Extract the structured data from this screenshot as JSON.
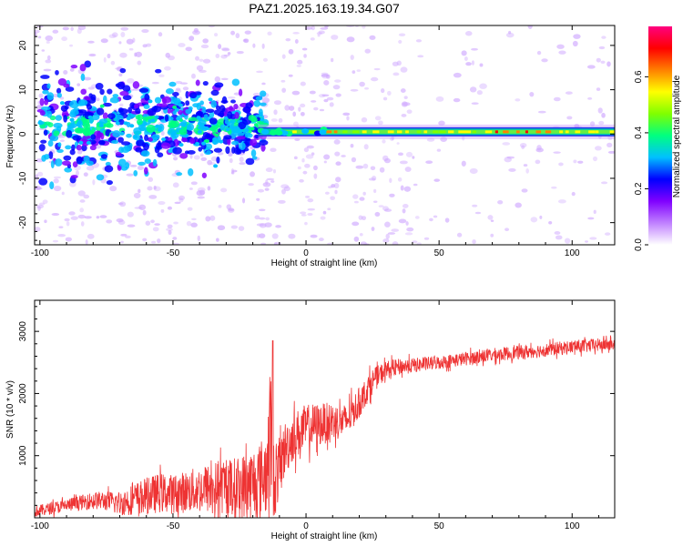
{
  "figure_title": "PAZ1.2025.163.19.34.G07",
  "chart_data": [
    {
      "type": "heatmap",
      "title": "",
      "xlabel": "Height of straight line (km)",
      "ylabel": "Frequency (Hz)",
      "xlim": [
        -102,
        116
      ],
      "ylim": [
        -25,
        24.5
      ],
      "xticks": [
        -100,
        -50,
        0,
        50,
        100
      ],
      "yticks": [
        -20,
        -10,
        0,
        10,
        20
      ],
      "colorbar": {
        "label": "Normalized spectral amplitude",
        "range": [
          0,
          0.78
        ],
        "ticks": [
          "0.0",
          "0.2",
          "0.4",
          "0.6"
        ],
        "tick_values": [
          0.0,
          0.2,
          0.4,
          0.6
        ],
        "colormap": [
          "#ffffff",
          "#c080ff",
          "#8000ff",
          "#0000ff",
          "#00c0ff",
          "#00ff80",
          "#80ff00",
          "#ffff00",
          "#ff8000",
          "#ff0000",
          "#ff0080"
        ]
      },
      "description_of_pattern": {
        "low_altitude_scatter_band_hz": [
          -8,
          12
        ],
        "narrow_band_center_hz": 0.5,
        "narrow_band_start_km": -18,
        "peak_amplitude_region_km": [
          70,
          95
        ]
      },
      "grid": false
    },
    {
      "type": "line",
      "title": "",
      "xlabel": "Height of straight line (km)",
      "ylabel": "SNR (10 * v/v)",
      "xlim": [
        -102,
        116
      ],
      "ylim": [
        0,
        3500
      ],
      "xticks": [
        -100,
        -50,
        0,
        50,
        100
      ],
      "yticks": [
        1000,
        2000,
        3000
      ],
      "series": [
        {
          "color": "#ee3333",
          "x": [
            -102,
            -95,
            -90,
            -85,
            -80,
            -75,
            -70,
            -65,
            -60,
            -55,
            -50,
            -45,
            -40,
            -35,
            -30,
            -25,
            -20,
            -15,
            -13,
            -12,
            -10,
            -8,
            -5,
            0,
            5,
            10,
            15,
            20,
            25,
            30,
            35,
            40,
            50,
            60,
            70,
            80,
            90,
            100,
            110,
            116
          ],
          "y_mean": [
            100,
            160,
            200,
            240,
            280,
            270,
            230,
            300,
            350,
            400,
            380,
            420,
            450,
            480,
            500,
            480,
            550,
            700,
            1450,
            550,
            800,
            1100,
            1300,
            1450,
            1500,
            1550,
            1550,
            1850,
            2200,
            2380,
            2430,
            2450,
            2500,
            2560,
            2620,
            2660,
            2700,
            2750,
            2780,
            2800
          ],
          "y_spread": [
            90,
            100,
            110,
            120,
            140,
            160,
            200,
            250,
            300,
            320,
            320,
            340,
            380,
            420,
            450,
            520,
            600,
            650,
            1300,
            600,
            500,
            450,
            400,
            380,
            350,
            300,
            280,
            250,
            200,
            150,
            130,
            120,
            110,
            110,
            110,
            110,
            110,
            110,
            110,
            110
          ]
        }
      ],
      "annotations": {
        "spike_x": -12.5,
        "spike_peak": 2850
      },
      "grid": false
    }
  ]
}
